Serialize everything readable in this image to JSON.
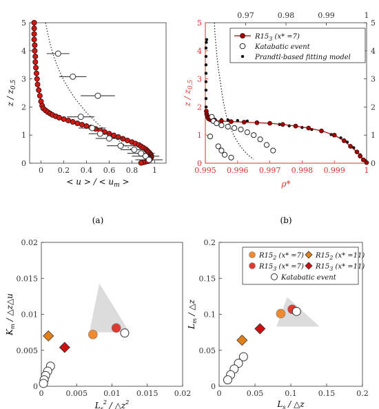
{
  "chart_data": [
    {
      "id": "a",
      "type": "line",
      "caption": "(a)",
      "xlabel": "< u > / < u_m >",
      "ylabel": "z / z_0.5",
      "xlim": [
        -0.1,
        1.1
      ],
      "ylim": [
        0,
        5
      ],
      "xticks": [
        0,
        0.2,
        0.4,
        0.6,
        0.8,
        1
      ],
      "yticks": [
        0,
        1,
        2,
        3,
        4,
        5
      ],
      "colors": {
        "sim_fill": "#cc1b14",
        "sim_edge": "#2a0000",
        "obs": "#333333",
        "fit": "#222222"
      },
      "series": [
        {
          "style": "red-circles",
          "x": [
            -0.06,
            -0.06,
            -0.06,
            -0.06,
            -0.055,
            -0.055,
            -0.05,
            -0.05,
            -0.045,
            -0.04,
            -0.035,
            -0.03,
            -0.02,
            -0.01,
            0,
            0.01,
            0.02,
            0.04,
            0.06,
            0.08,
            0.1,
            0.13,
            0.16,
            0.2,
            0.24,
            0.28,
            0.32,
            0.36,
            0.4,
            0.44,
            0.48,
            0.52,
            0.56,
            0.6,
            0.64,
            0.68,
            0.72,
            0.76,
            0.8,
            0.83,
            0.86,
            0.88,
            0.9,
            0.92,
            0.93,
            0.94,
            0.95,
            0.96,
            0.965,
            0.97,
            0.97,
            0.965,
            0.96,
            0.95,
            0.94,
            0.92,
            0.9,
            0.88
          ],
          "y": [
            5,
            4.8,
            4.6,
            4.4,
            4.2,
            4.0,
            3.8,
            3.6,
            3.4,
            3.2,
            3.0,
            2.8,
            2.6,
            2.4,
            2.2,
            2.05,
            1.95,
            1.88,
            1.82,
            1.77,
            1.72,
            1.67,
            1.62,
            1.57,
            1.52,
            1.47,
            1.42,
            1.37,
            1.32,
            1.27,
            1.22,
            1.17,
            1.11,
            1.05,
            0.99,
            0.93,
            0.87,
            0.81,
            0.75,
            0.7,
            0.65,
            0.6,
            0.55,
            0.5,
            0.46,
            0.42,
            0.38,
            0.34,
            0.3,
            0.26,
            0.22,
            0.18,
            0.14,
            0.1,
            0.07,
            0.05,
            0.03,
            0.01
          ]
        },
        {
          "style": "open-circles-errorbars",
          "x": [
            0.15,
            0.28,
            0.5,
            0.35,
            0.45,
            0.52,
            0.6,
            0.7,
            0.82,
            0.88,
            0.92,
            0.95
          ],
          "y": [
            3.9,
            3.08,
            2.4,
            1.65,
            1.25,
            1.05,
            0.88,
            0.62,
            0.48,
            0.35,
            0.25,
            0.12
          ],
          "xerr": [
            0.1,
            0.12,
            0.15,
            0.12,
            0.12,
            0.1,
            0.12,
            0.12,
            0.12,
            0.12,
            0.12,
            0.12
          ]
        },
        {
          "style": "dotted",
          "x": [
            0.04,
            0.06,
            0.08,
            0.1,
            0.13,
            0.16,
            0.2,
            0.25,
            0.3,
            0.35,
            0.4,
            0.45,
            0.5,
            0.55,
            0.6,
            0.65,
            0.7,
            0.75,
            0.8,
            0.85,
            0.9,
            0.93,
            0.95,
            0.96,
            0.97
          ],
          "y": [
            5,
            4.6,
            4.25,
            3.95,
            3.6,
            3.3,
            2.95,
            2.6,
            2.3,
            2.05,
            1.8,
            1.6,
            1.4,
            1.22,
            1.05,
            0.9,
            0.75,
            0.6,
            0.47,
            0.35,
            0.23,
            0.15,
            0.1,
            0.06,
            0.03
          ]
        }
      ]
    },
    {
      "id": "b",
      "type": "line",
      "caption": "(b)",
      "xlabel": "ρ*",
      "ylabel": "z / z_0.5",
      "xlim": [
        0.995,
        1
      ],
      "ylim": [
        0,
        5
      ],
      "xticks": [
        0.995,
        0.996,
        0.997,
        0.998,
        0.999,
        1
      ],
      "xticklabels": [
        "0.995",
        "0.996",
        "0.997",
        "0.998",
        "0.999",
        "1"
      ],
      "top_xlim": [
        0.96,
        1
      ],
      "top_xticks": [
        0.97,
        0.98,
        0.99,
        1
      ],
      "top_xticklabels": [
        "0.97",
        "0.98",
        "0.99",
        "1"
      ],
      "yticks": [
        0,
        1,
        2,
        3,
        4,
        5
      ],
      "legend": {
        "position": "top-right",
        "entries": [
          {
            "label": "R15",
            "sub": "3",
            "suffix": " (x* =7)",
            "marker": "red-line-circle"
          },
          {
            "label": "Katabatic event",
            "marker": "open-circle"
          },
          {
            "label": "Prandtl-based fitting model",
            "marker": "black-dot"
          }
        ]
      },
      "colors": {
        "axis_red": "#e0302a",
        "sim": "#a80000",
        "obs": "#222222",
        "fit": "#111111"
      },
      "series": [
        {
          "style": "red-circles",
          "x": [
            0.99503,
            0.99504,
            0.99506,
            0.99508,
            0.9951,
            0.99515,
            0.9952,
            0.9953,
            0.9955,
            0.9958,
            0.9962,
            0.9966,
            0.997,
            0.9974,
            0.9978,
            0.9982,
            0.9986,
            0.999,
            0.9993,
            0.9995,
            0.9997,
            0.9998,
            0.9999,
            1.0
          ],
          "y": [
            1.85,
            1.75,
            1.68,
            1.62,
            1.58,
            1.55,
            1.53,
            1.51,
            1.5,
            1.48,
            1.46,
            1.44,
            1.42,
            1.38,
            1.32,
            1.25,
            1.15,
            1.0,
            0.8,
            0.6,
            0.4,
            0.25,
            0.12,
            0.02
          ]
        },
        {
          "style": "open-circles",
          "x": [
            0.9952,
            0.99525,
            0.99535,
            0.9955,
            0.9957,
            0.9959,
            0.9961,
            0.9963,
            0.9965,
            0.9967,
            0.9969,
            0.9971,
            0.9954,
            0.9955,
            0.99515,
            0.9956,
            0.9958
          ],
          "y": [
            1.65,
            1.5,
            1.42,
            1.35,
            1.3,
            1.25,
            1.2,
            1.1,
            1.0,
            0.85,
            0.65,
            0.45,
            0.6,
            0.45,
            0.95,
            0.3,
            0.2
          ]
        },
        {
          "style": "black-dots",
          "x": [
            0.99504,
            0.99503,
            0.99502,
            0.99502,
            0.99502,
            0.99502,
            0.99502,
            0.99502,
            0.99502,
            0.99502,
            0.99503,
            0.99504,
            0.99505,
            0.99508,
            0.9951,
            0.99515,
            0.9952,
            0.9953,
            0.9955,
            0.9957,
            0.996,
            0.9963,
            0.9966,
            0.997,
            0.9973,
            0.9976,
            0.998,
            0.9983,
            0.9986,
            0.9989,
            0.9992,
            0.9994,
            0.9996,
            0.9998,
            0.99995
          ],
          "y": [
            4.4,
            4.3,
            4.1,
            3.8,
            3.5,
            3.2,
            2.9,
            2.6,
            2.3,
            2.0,
            1.8,
            1.72,
            1.66,
            1.62,
            1.6,
            1.58,
            1.57,
            1.56,
            1.55,
            1.54,
            1.52,
            1.5,
            1.47,
            1.43,
            1.38,
            1.33,
            1.27,
            1.2,
            1.12,
            1.02,
            0.9,
            0.75,
            0.55,
            0.3,
            0.1
          ]
        },
        {
          "style": "dotted",
          "x": [
            0.99528,
            0.9953,
            0.99533,
            0.99536,
            0.9954,
            0.99545,
            0.9955,
            0.99555,
            0.9956,
            0.99565,
            0.9957,
            0.9958,
            0.9959,
            0.996,
            0.9961,
            0.9962,
            0.9963,
            0.9964,
            0.9965
          ],
          "y": [
            5,
            4.6,
            4.2,
            3.8,
            3.4,
            3.0,
            2.6,
            2.25,
            1.95,
            1.7,
            1.5,
            1.2,
            0.95,
            0.75,
            0.58,
            0.44,
            0.32,
            0.22,
            0.14
          ]
        }
      ]
    },
    {
      "id": "c",
      "type": "scatter",
      "xlabel": "L_s^2 / △z^2",
      "ylabel": "K_m / △z△u",
      "xlim": [
        0,
        0.02
      ],
      "ylim": [
        0,
        0.02
      ],
      "xticks": [
        0,
        0.005,
        0.01,
        0.015,
        0.02
      ],
      "xticklabels": [
        "0",
        "0.005",
        "0.01",
        "0.015",
        "0.02"
      ],
      "yticks": [
        0,
        0.005,
        0.01,
        0.015,
        0.02
      ],
      "yticklabels": [
        "0",
        "0.005",
        "0.01",
        "0.015",
        "0.02"
      ],
      "shade_triangle": [
        [
          0.0068,
          0.0075
        ],
        [
          0.0125,
          0.0075
        ],
        [
          0.0082,
          0.0143
        ]
      ],
      "points": [
        {
          "group": "R15_2 (x*=7)",
          "marker": "circle",
          "color": "#f08a30",
          "x": 0.0073,
          "y": 0.0072
        },
        {
          "group": "R15_3 (x*=7)",
          "marker": "circle",
          "color": "#e03a30",
          "x": 0.0106,
          "y": 0.0081
        },
        {
          "group": "R15_2 (x*=11)",
          "marker": "diamond",
          "color": "#e0801a",
          "x": 0.001,
          "y": 0.007
        },
        {
          "group": "R15_3 (x*=11)",
          "marker": "diamond",
          "color": "#cc1010",
          "x": 0.0033,
          "y": 0.0054
        },
        {
          "group": "Katabatic event",
          "marker": "open-circle",
          "x": 0.0118,
          "y": 0.0074
        },
        {
          "group": "Katabatic event",
          "marker": "open-circle",
          "x": 0.0013,
          "y": 0.0028
        },
        {
          "group": "Katabatic event",
          "marker": "open-circle",
          "x": 0.0009,
          "y": 0.0021
        },
        {
          "group": "Katabatic event",
          "marker": "open-circle",
          "x": 0.0006,
          "y": 0.0015
        },
        {
          "group": "Katabatic event",
          "marker": "open-circle",
          "x": 0.0004,
          "y": 0.0009
        },
        {
          "group": "Katabatic event",
          "marker": "open-circle",
          "x": 0.0003,
          "y": 0.0004
        }
      ]
    },
    {
      "id": "d",
      "type": "scatter",
      "xlabel": "L_s / △z",
      "ylabel": "L_m / △z",
      "xlim": [
        0,
        0.2
      ],
      "ylim": [
        0,
        0.2
      ],
      "xticks": [
        0,
        0.05,
        0.1,
        0.15,
        0.2
      ],
      "xticklabels": [
        "0",
        "0.05",
        "0.1",
        "0.15",
        "0.2"
      ],
      "yticks": [
        0,
        0.05,
        0.1,
        0.15,
        0.2
      ],
      "yticklabels": [
        "0",
        "0.05",
        "0.1",
        "0.15",
        "0.2"
      ],
      "shade_triangle": [
        [
          0.08,
          0.083
        ],
        [
          0.14,
          0.083
        ],
        [
          0.095,
          0.124
        ]
      ],
      "legend": {
        "position": "top-right",
        "entries": [
          {
            "label": "R15",
            "sub": "2",
            "suffix": " (x* =7)",
            "marker": "circle",
            "color": "#f08a30"
          },
          {
            "label": "R15",
            "sub": "2",
            "suffix": " (x* =11)",
            "marker": "diamond",
            "color": "#e0801a"
          },
          {
            "label": "R15",
            "sub": "3",
            "suffix": " (x* =7)",
            "marker": "circle",
            "color": "#e03a30"
          },
          {
            "label": "R15",
            "sub": "3",
            "suffix": " (x* =11)",
            "marker": "diamond",
            "color": "#cc1010"
          },
          {
            "label": "Katabatic event",
            "marker": "open-circle"
          }
        ]
      },
      "points": [
        {
          "group": "R15_2 (x*=7)",
          "marker": "circle",
          "color": "#f08a30",
          "x": 0.086,
          "y": 0.101
        },
        {
          "group": "R15_3 (x*=7)",
          "marker": "circle",
          "color": "#e03a30",
          "x": 0.102,
          "y": 0.107
        },
        {
          "group": "R15_2 (x*=11)",
          "marker": "diamond",
          "color": "#e0801a",
          "x": 0.032,
          "y": 0.064
        },
        {
          "group": "R15_3 (x*=11)",
          "marker": "diamond",
          "color": "#cc1010",
          "x": 0.057,
          "y": 0.08
        },
        {
          "group": "Katabatic event",
          "marker": "open-circle",
          "x": 0.108,
          "y": 0.104
        },
        {
          "group": "Katabatic event",
          "marker": "open-circle",
          "x": 0.034,
          "y": 0.041
        },
        {
          "group": "Katabatic event",
          "marker": "open-circle",
          "x": 0.027,
          "y": 0.032
        },
        {
          "group": "Katabatic event",
          "marker": "open-circle",
          "x": 0.021,
          "y": 0.024
        },
        {
          "group": "Katabatic event",
          "marker": "open-circle",
          "x": 0.016,
          "y": 0.016
        },
        {
          "group": "Katabatic event",
          "marker": "open-circle",
          "x": 0.012,
          "y": 0.009
        }
      ]
    }
  ]
}
